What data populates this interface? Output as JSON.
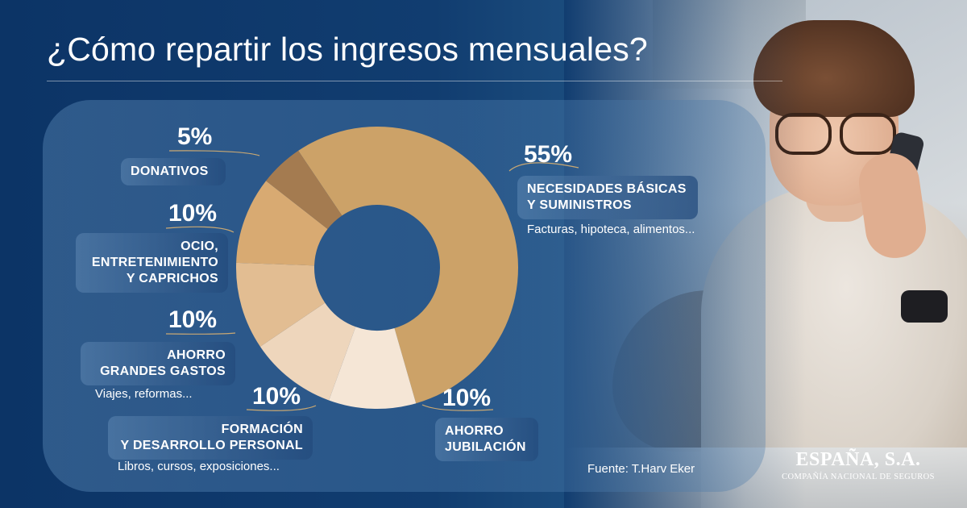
{
  "title": "¿Cómo repartir los ingresos mensuales?",
  "source": "Fuente: T.Harv Eker",
  "brand": {
    "name": "ESPAÑA, S.A.",
    "tagline": "COMPAÑÍA NACIONAL DE SEGUROS"
  },
  "chart_data": {
    "type": "pie",
    "donut": true,
    "title": "¿Cómo repartir los ingresos mensuales?",
    "categories": [
      "NECESIDADES BÁSICAS Y SUMINISTROS",
      "AHORRO JUBILACIÓN",
      "FORMACIÓN Y DESARROLLO PERSONAL",
      "AHORRO GRANDES GASTOS",
      "OCIO, ENTRETENIMIENTO Y CAPRICHOS",
      "DONATIVOS"
    ],
    "values": [
      55,
      10,
      10,
      10,
      10,
      5
    ],
    "colors": [
      "#cca268",
      "#f5e6d6",
      "#eed6bc",
      "#e2bd92",
      "#d8aa72",
      "#a47b50"
    ],
    "labels": [
      {
        "pct": "55%",
        "lines": [
          "NECESIDADES BÁSICAS",
          "Y SUMINISTROS"
        ],
        "sub": "Facturas, hipoteca, alimentos..."
      },
      {
        "pct": "10%",
        "lines": [
          "AHORRO",
          "JUBILACIÓN"
        ],
        "sub": ""
      },
      {
        "pct": "10%",
        "lines": [
          "FORMACIÓN",
          "Y DESARROLLO PERSONAL"
        ],
        "sub": "Libros, cursos, exposiciones..."
      },
      {
        "pct": "10%",
        "lines": [
          "AHORRO",
          "GRANDES GASTOS"
        ],
        "sub": "Viajes, reformas..."
      },
      {
        "pct": "10%",
        "lines": [
          "OCIO,",
          "ENTRETENIMIENTO",
          "Y CAPRICHOS"
        ],
        "sub": ""
      },
      {
        "pct": "5%",
        "lines": [
          "DONATIVOS"
        ],
        "sub": ""
      }
    ],
    "start_angle_deg": -34,
    "direction": "clockwise",
    "legend": "none"
  }
}
